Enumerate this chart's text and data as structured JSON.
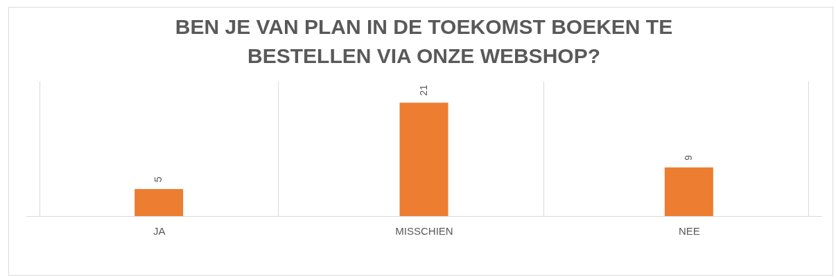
{
  "chart_data": {
    "type": "bar",
    "title": "BEN JE VAN PLAN IN DE TOEKOMST BOEKEN TE BESTELLEN VIA ONZE WEBSHOP?",
    "categories": [
      "JA",
      "MISSCHIEN",
      "NEE"
    ],
    "values": [
      5,
      21,
      9
    ],
    "color": "#ed7d31",
    "data_labels": true,
    "grid": "x"
  }
}
